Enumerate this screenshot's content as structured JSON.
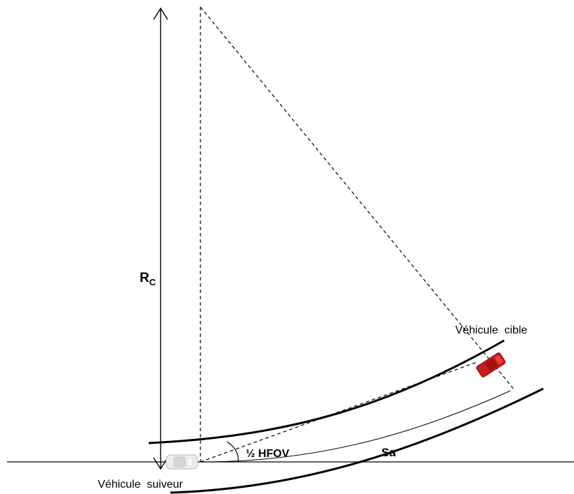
{
  "labels": {
    "radius_main": "R",
    "radius_sub": "C",
    "target_vehicle": "Véhicule  cible",
    "follower_vehicle": "Véhicule  suiveur",
    "arc_length": "Sa",
    "half_fov": "½ HFOV"
  },
  "colors": {
    "line": "#000000",
    "target_vehicle": "#cc1b1b",
    "follower_vehicle": "#e8e8e8"
  },
  "icons": {
    "target_vehicle": "red-car-icon",
    "follower_vehicle": "white-car-icon"
  }
}
